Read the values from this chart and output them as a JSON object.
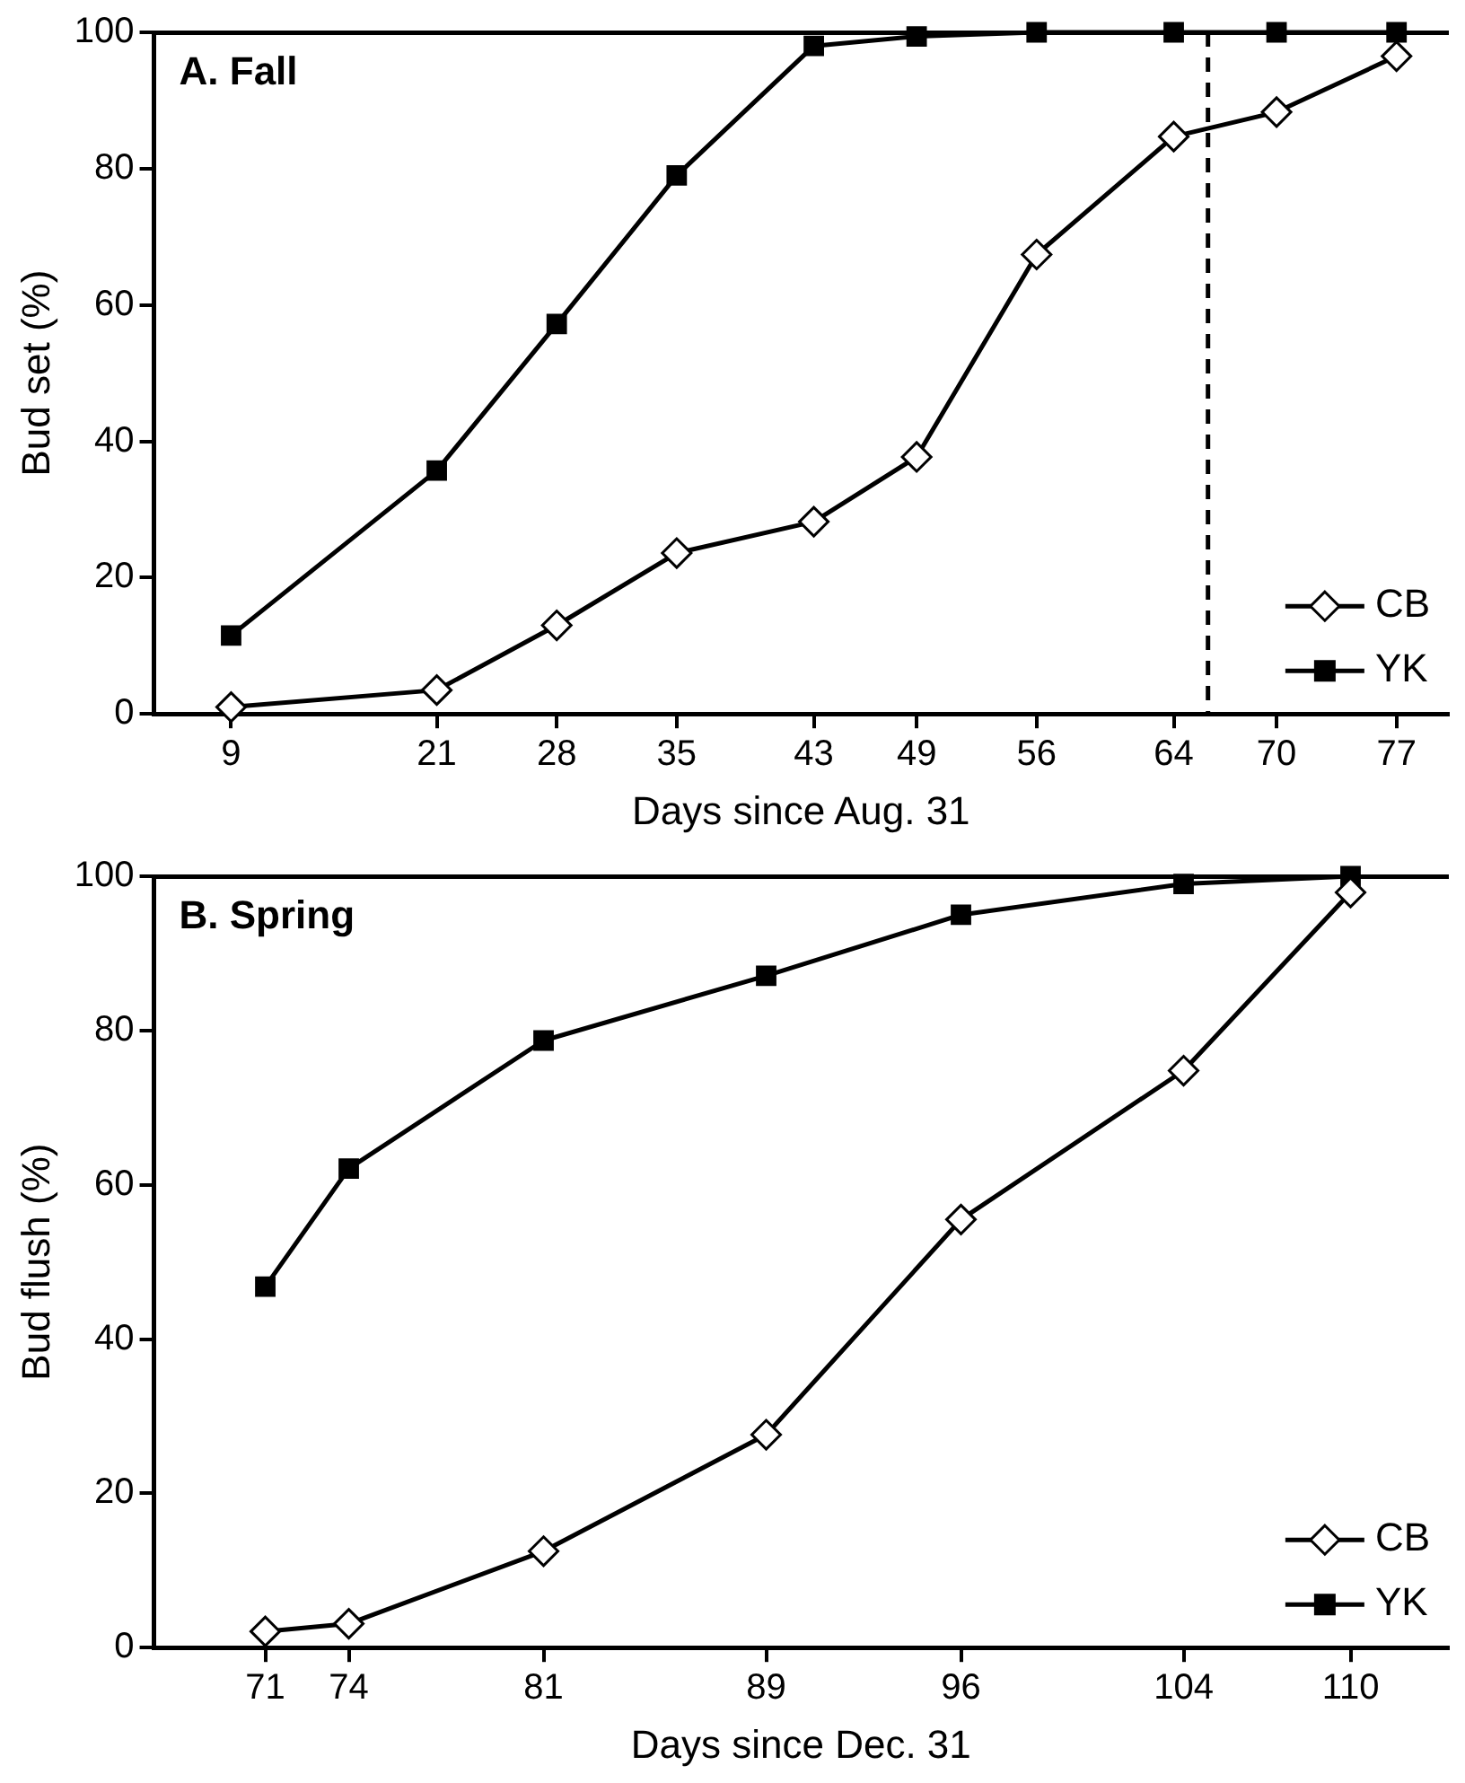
{
  "chart_data": [
    {
      "type": "line",
      "title": "A. Fall",
      "xlabel": "Days since Aug. 31",
      "ylabel": "Bud set (%)",
      "xlim": [
        4.5,
        80
      ],
      "xticks": [
        9,
        21,
        28,
        35,
        43,
        49,
        56,
        64,
        70,
        77
      ],
      "ylim": [
        0,
        100
      ],
      "yticks": [
        0,
        20,
        40,
        60,
        80,
        100
      ],
      "grid": false,
      "legend": "bottom right",
      "line_style": "solid",
      "ref_lines": [
        {
          "axis": "x",
          "value": 66,
          "line_style": "dashed",
          "color": "#000000"
        }
      ],
      "series": [
        {
          "name": "CB",
          "color": "#000000",
          "marker": "diamond",
          "x": [
            9,
            21,
            28,
            35,
            43,
            49,
            56,
            64,
            70,
            77
          ],
          "values": [
            1,
            3.5,
            13,
            23.6,
            28.2,
            37.7,
            67.4,
            84.7,
            88.3,
            96.5
          ]
        },
        {
          "name": "YK",
          "color": "#000000",
          "marker": "square",
          "x": [
            9,
            21,
            28,
            35,
            43,
            49,
            56,
            64,
            70,
            77
          ],
          "values": [
            11.5,
            35.7,
            57.2,
            79,
            98,
            99.4,
            100,
            100,
            100,
            100
          ]
        }
      ]
    },
    {
      "type": "line",
      "title": "B. Spring",
      "xlabel": "Days since Dec. 31",
      "ylabel": "Bud flush (%)",
      "xlim": [
        67,
        113.5
      ],
      "xticks": [
        71,
        74,
        81,
        89,
        96,
        104,
        110
      ],
      "ylim": [
        0,
        100
      ],
      "yticks": [
        0,
        20,
        40,
        60,
        80,
        100
      ],
      "grid": false,
      "legend": "bottom right",
      "line_style": "solid",
      "series": [
        {
          "name": "CB",
          "color": "#000000",
          "marker": "diamond",
          "x": [
            71,
            74,
            81,
            89,
            96,
            104,
            110
          ],
          "values": [
            2.1,
            3.1,
            12.5,
            27.6,
            55.5,
            74.8,
            97.9
          ]
        },
        {
          "name": "YK",
          "color": "#000000",
          "marker": "square",
          "x": [
            71,
            74,
            81,
            89,
            96,
            104,
            110
          ],
          "values": [
            46.8,
            62.1,
            78.7,
            87.1,
            95,
            99,
            100
          ]
        }
      ]
    }
  ]
}
